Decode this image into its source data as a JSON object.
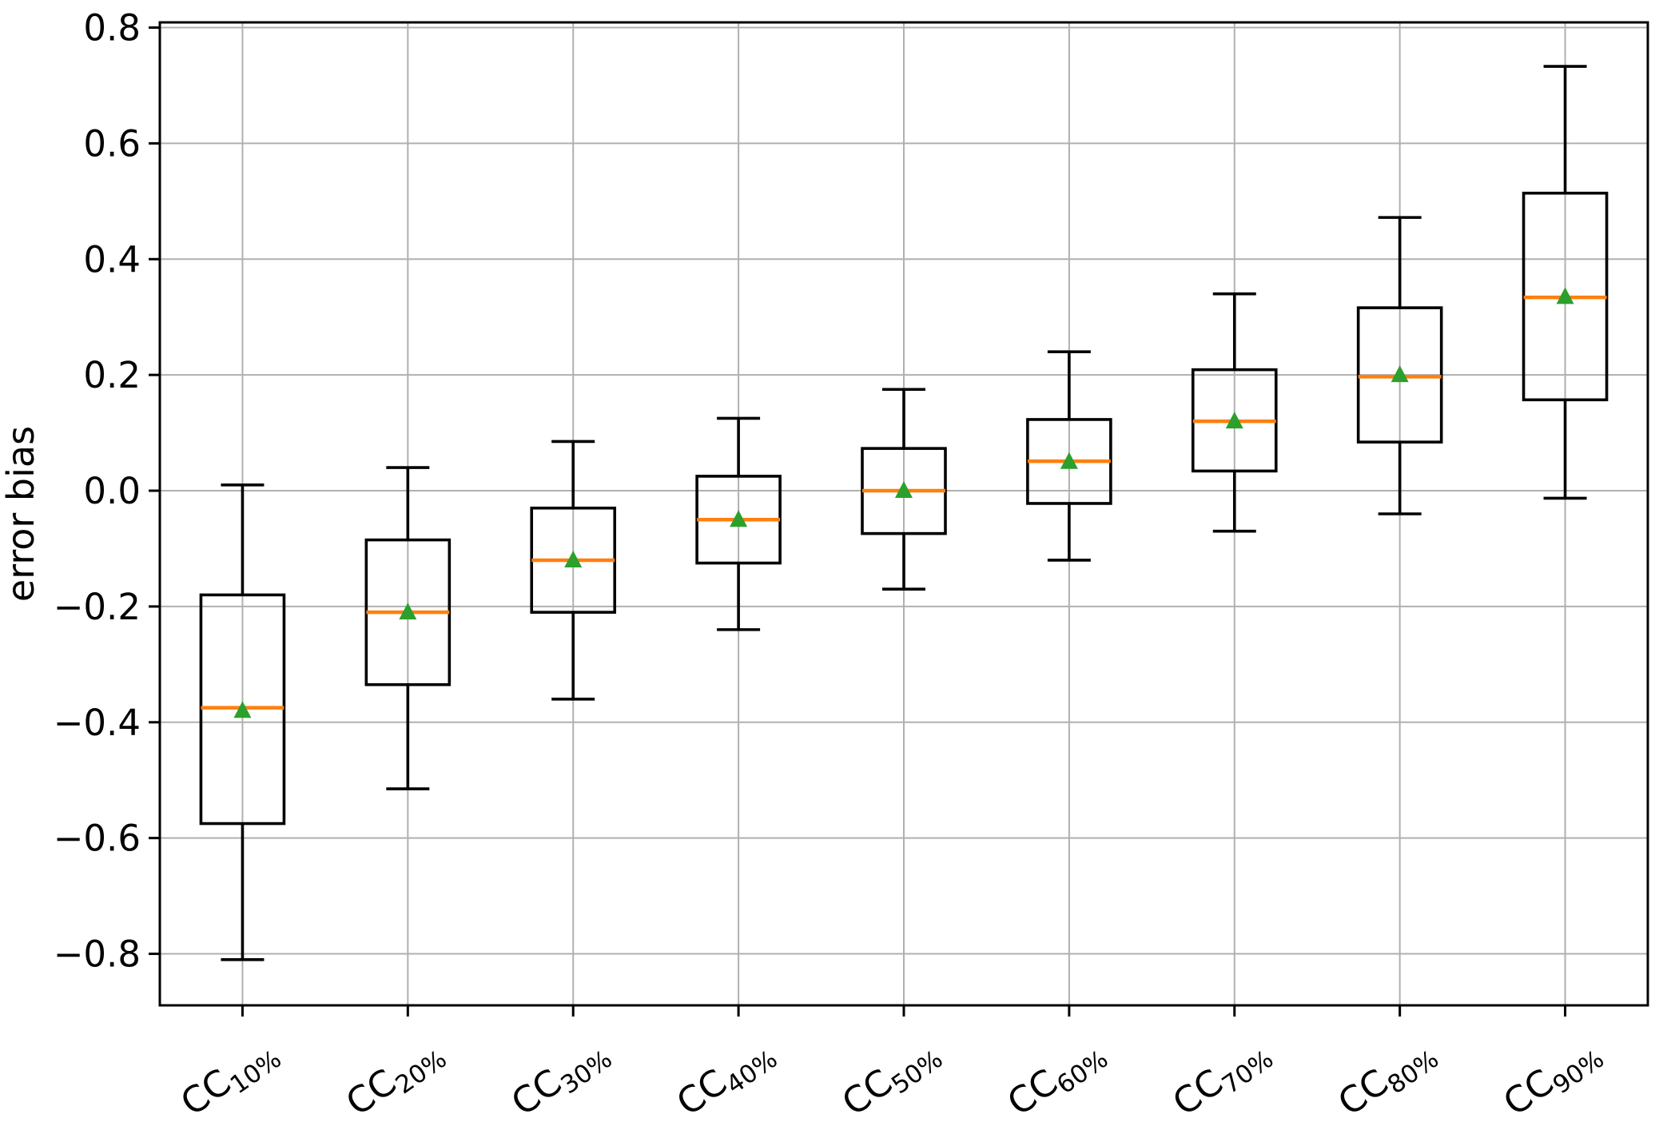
{
  "chart_data": {
    "type": "box",
    "title": "",
    "xlabel": "",
    "ylabel": "error bias",
    "grid": true,
    "legend": null,
    "ylim": [
      -0.889,
      0.809
    ],
    "xlim": [
      0.5,
      9.5
    ],
    "yticks": [
      {
        "label": "0.8",
        "value": 0.8
      },
      {
        "label": "0.6",
        "value": 0.6
      },
      {
        "label": "0.4",
        "value": 0.4
      },
      {
        "label": "0.2",
        "value": 0.2
      },
      {
        "label": "0.0",
        "value": 0.0
      },
      {
        "label": "−0.2",
        "value": -0.2
      },
      {
        "label": "−0.4",
        "value": -0.4
      },
      {
        "label": "−0.6",
        "value": -0.6
      },
      {
        "label": "−0.8",
        "value": -0.8
      }
    ],
    "categories": [
      {
        "prefix": "CC",
        "sub": "10%"
      },
      {
        "prefix": "CC",
        "sub": "20%"
      },
      {
        "prefix": "CC",
        "sub": "30%"
      },
      {
        "prefix": "CC",
        "sub": "40%"
      },
      {
        "prefix": "CC",
        "sub": "50%"
      },
      {
        "prefix": "CC",
        "sub": "60%"
      },
      {
        "prefix": "CC",
        "sub": "70%"
      },
      {
        "prefix": "CC",
        "sub": "80%"
      },
      {
        "prefix": "CC",
        "sub": "90%"
      }
    ],
    "boxes": [
      {
        "label": "CC10%",
        "whislo": -0.81,
        "q1": -0.575,
        "med": -0.375,
        "q3": -0.18,
        "whishi": 0.01,
        "mean": -0.38
      },
      {
        "label": "CC20%",
        "whislo": -0.515,
        "q1": -0.335,
        "med": -0.21,
        "q3": -0.085,
        "whishi": 0.04,
        "mean": -0.21
      },
      {
        "label": "CC30%",
        "whislo": -0.36,
        "q1": -0.21,
        "med": -0.12,
        "q3": -0.03,
        "whishi": 0.085,
        "mean": -0.12
      },
      {
        "label": "CC40%",
        "whislo": -0.24,
        "q1": -0.125,
        "med": -0.05,
        "q3": 0.025,
        "whishi": 0.125,
        "mean": -0.05
      },
      {
        "label": "CC50%",
        "whislo": -0.17,
        "q1": -0.074,
        "med": 0.0,
        "q3": 0.073,
        "whishi": 0.175,
        "mean": 0.0
      },
      {
        "label": "CC60%",
        "whislo": -0.12,
        "q1": -0.022,
        "med": 0.051,
        "q3": 0.123,
        "whishi": 0.24,
        "mean": 0.05
      },
      {
        "label": "CC70%",
        "whislo": -0.07,
        "q1": 0.034,
        "med": 0.12,
        "q3": 0.209,
        "whishi": 0.34,
        "mean": 0.12
      },
      {
        "label": "CC80%",
        "whislo": -0.04,
        "q1": 0.084,
        "med": 0.197,
        "q3": 0.316,
        "whishi": 0.472,
        "mean": 0.2
      },
      {
        "label": "CC90%",
        "whislo": -0.013,
        "q1": 0.157,
        "med": 0.334,
        "q3": 0.514,
        "whishi": 0.733,
        "mean": 0.335
      }
    ],
    "colors": {
      "box_edge": "#000000",
      "median": "#ff7f0e",
      "mean_marker": "#2ca02c",
      "grid": "#b0b0b0",
      "spine": "#000000",
      "background": "#ffffff"
    }
  }
}
